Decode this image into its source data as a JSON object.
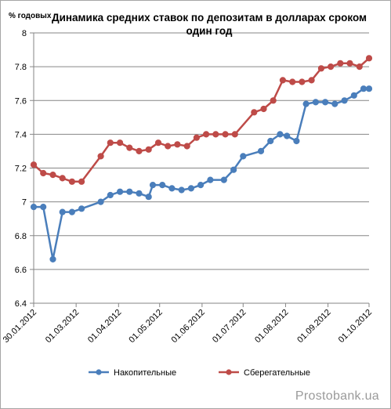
{
  "chart_data": {
    "type": "line",
    "title": "Динамика средних ставок по депозитам в долларах сроком один год",
    "ylabel": "% годовых",
    "ylim": [
      6.4,
      8
    ],
    "yticks": [
      "6.4",
      "6.6",
      "6.8",
      "7",
      "7.2",
      "7.4",
      "7.6",
      "7.8",
      "8"
    ],
    "xticks": [
      "30.01.2012",
      "01.03.2012",
      "01.04.2012",
      "01.05.2012",
      "01.06.2012",
      "01.07.2012",
      "01.08.2012",
      "01.09.2012",
      "01.10.2012"
    ],
    "xrange": [
      "2012-01-30",
      "2012-10-01"
    ],
    "grid": "horizontal",
    "legend_position": "bottom",
    "series": [
      {
        "name": "Накопительные",
        "color": "#4a7ebb",
        "x": [
          "2012-01-30",
          "2012-02-06",
          "2012-02-13",
          "2012-02-20",
          "2012-02-27",
          "2012-03-05",
          "2012-03-19",
          "2012-03-26",
          "2012-04-02",
          "2012-04-09",
          "2012-04-16",
          "2012-04-23",
          "2012-04-26",
          "2012-05-03",
          "2012-05-10",
          "2012-05-17",
          "2012-05-24",
          "2012-05-31",
          "2012-06-07",
          "2012-06-17",
          "2012-06-24",
          "2012-07-01",
          "2012-07-14",
          "2012-07-21",
          "2012-07-28",
          "2012-08-02",
          "2012-08-09",
          "2012-08-16",
          "2012-08-23",
          "2012-08-30",
          "2012-09-06",
          "2012-09-13",
          "2012-09-20",
          "2012-09-27",
          "2012-10-01"
        ],
        "values": [
          6.97,
          6.97,
          6.66,
          6.94,
          6.94,
          6.96,
          7.0,
          7.04,
          7.06,
          7.06,
          7.05,
          7.03,
          7.1,
          7.1,
          7.08,
          7.07,
          7.08,
          7.1,
          7.13,
          7.13,
          7.19,
          7.27,
          7.3,
          7.36,
          7.4,
          7.39,
          7.36,
          7.58,
          7.59,
          7.59,
          7.58,
          7.6,
          7.63,
          7.67,
          7.67
        ]
      },
      {
        "name": "Сберегательные",
        "color": "#be4b48",
        "x": [
          "2012-01-30",
          "2012-02-06",
          "2012-02-13",
          "2012-02-20",
          "2012-02-27",
          "2012-03-05",
          "2012-03-19",
          "2012-03-26",
          "2012-04-02",
          "2012-04-09",
          "2012-04-16",
          "2012-04-23",
          "2012-04-30",
          "2012-05-07",
          "2012-05-14",
          "2012-05-21",
          "2012-05-28",
          "2012-06-04",
          "2012-06-11",
          "2012-06-18",
          "2012-06-25",
          "2012-07-09",
          "2012-07-16",
          "2012-07-23",
          "2012-07-30",
          "2012-08-06",
          "2012-08-13",
          "2012-08-20",
          "2012-08-27",
          "2012-09-03",
          "2012-09-10",
          "2012-09-17",
          "2012-09-24",
          "2012-10-01"
        ],
        "values": [
          7.22,
          7.17,
          7.16,
          7.14,
          7.12,
          7.12,
          7.27,
          7.35,
          7.35,
          7.32,
          7.3,
          7.31,
          7.35,
          7.33,
          7.34,
          7.33,
          7.38,
          7.4,
          7.4,
          7.4,
          7.4,
          7.53,
          7.55,
          7.6,
          7.72,
          7.71,
          7.71,
          7.72,
          7.79,
          7.8,
          7.82,
          7.82,
          7.8,
          7.85
        ]
      }
    ]
  },
  "watermark": "Prostobank.ua"
}
